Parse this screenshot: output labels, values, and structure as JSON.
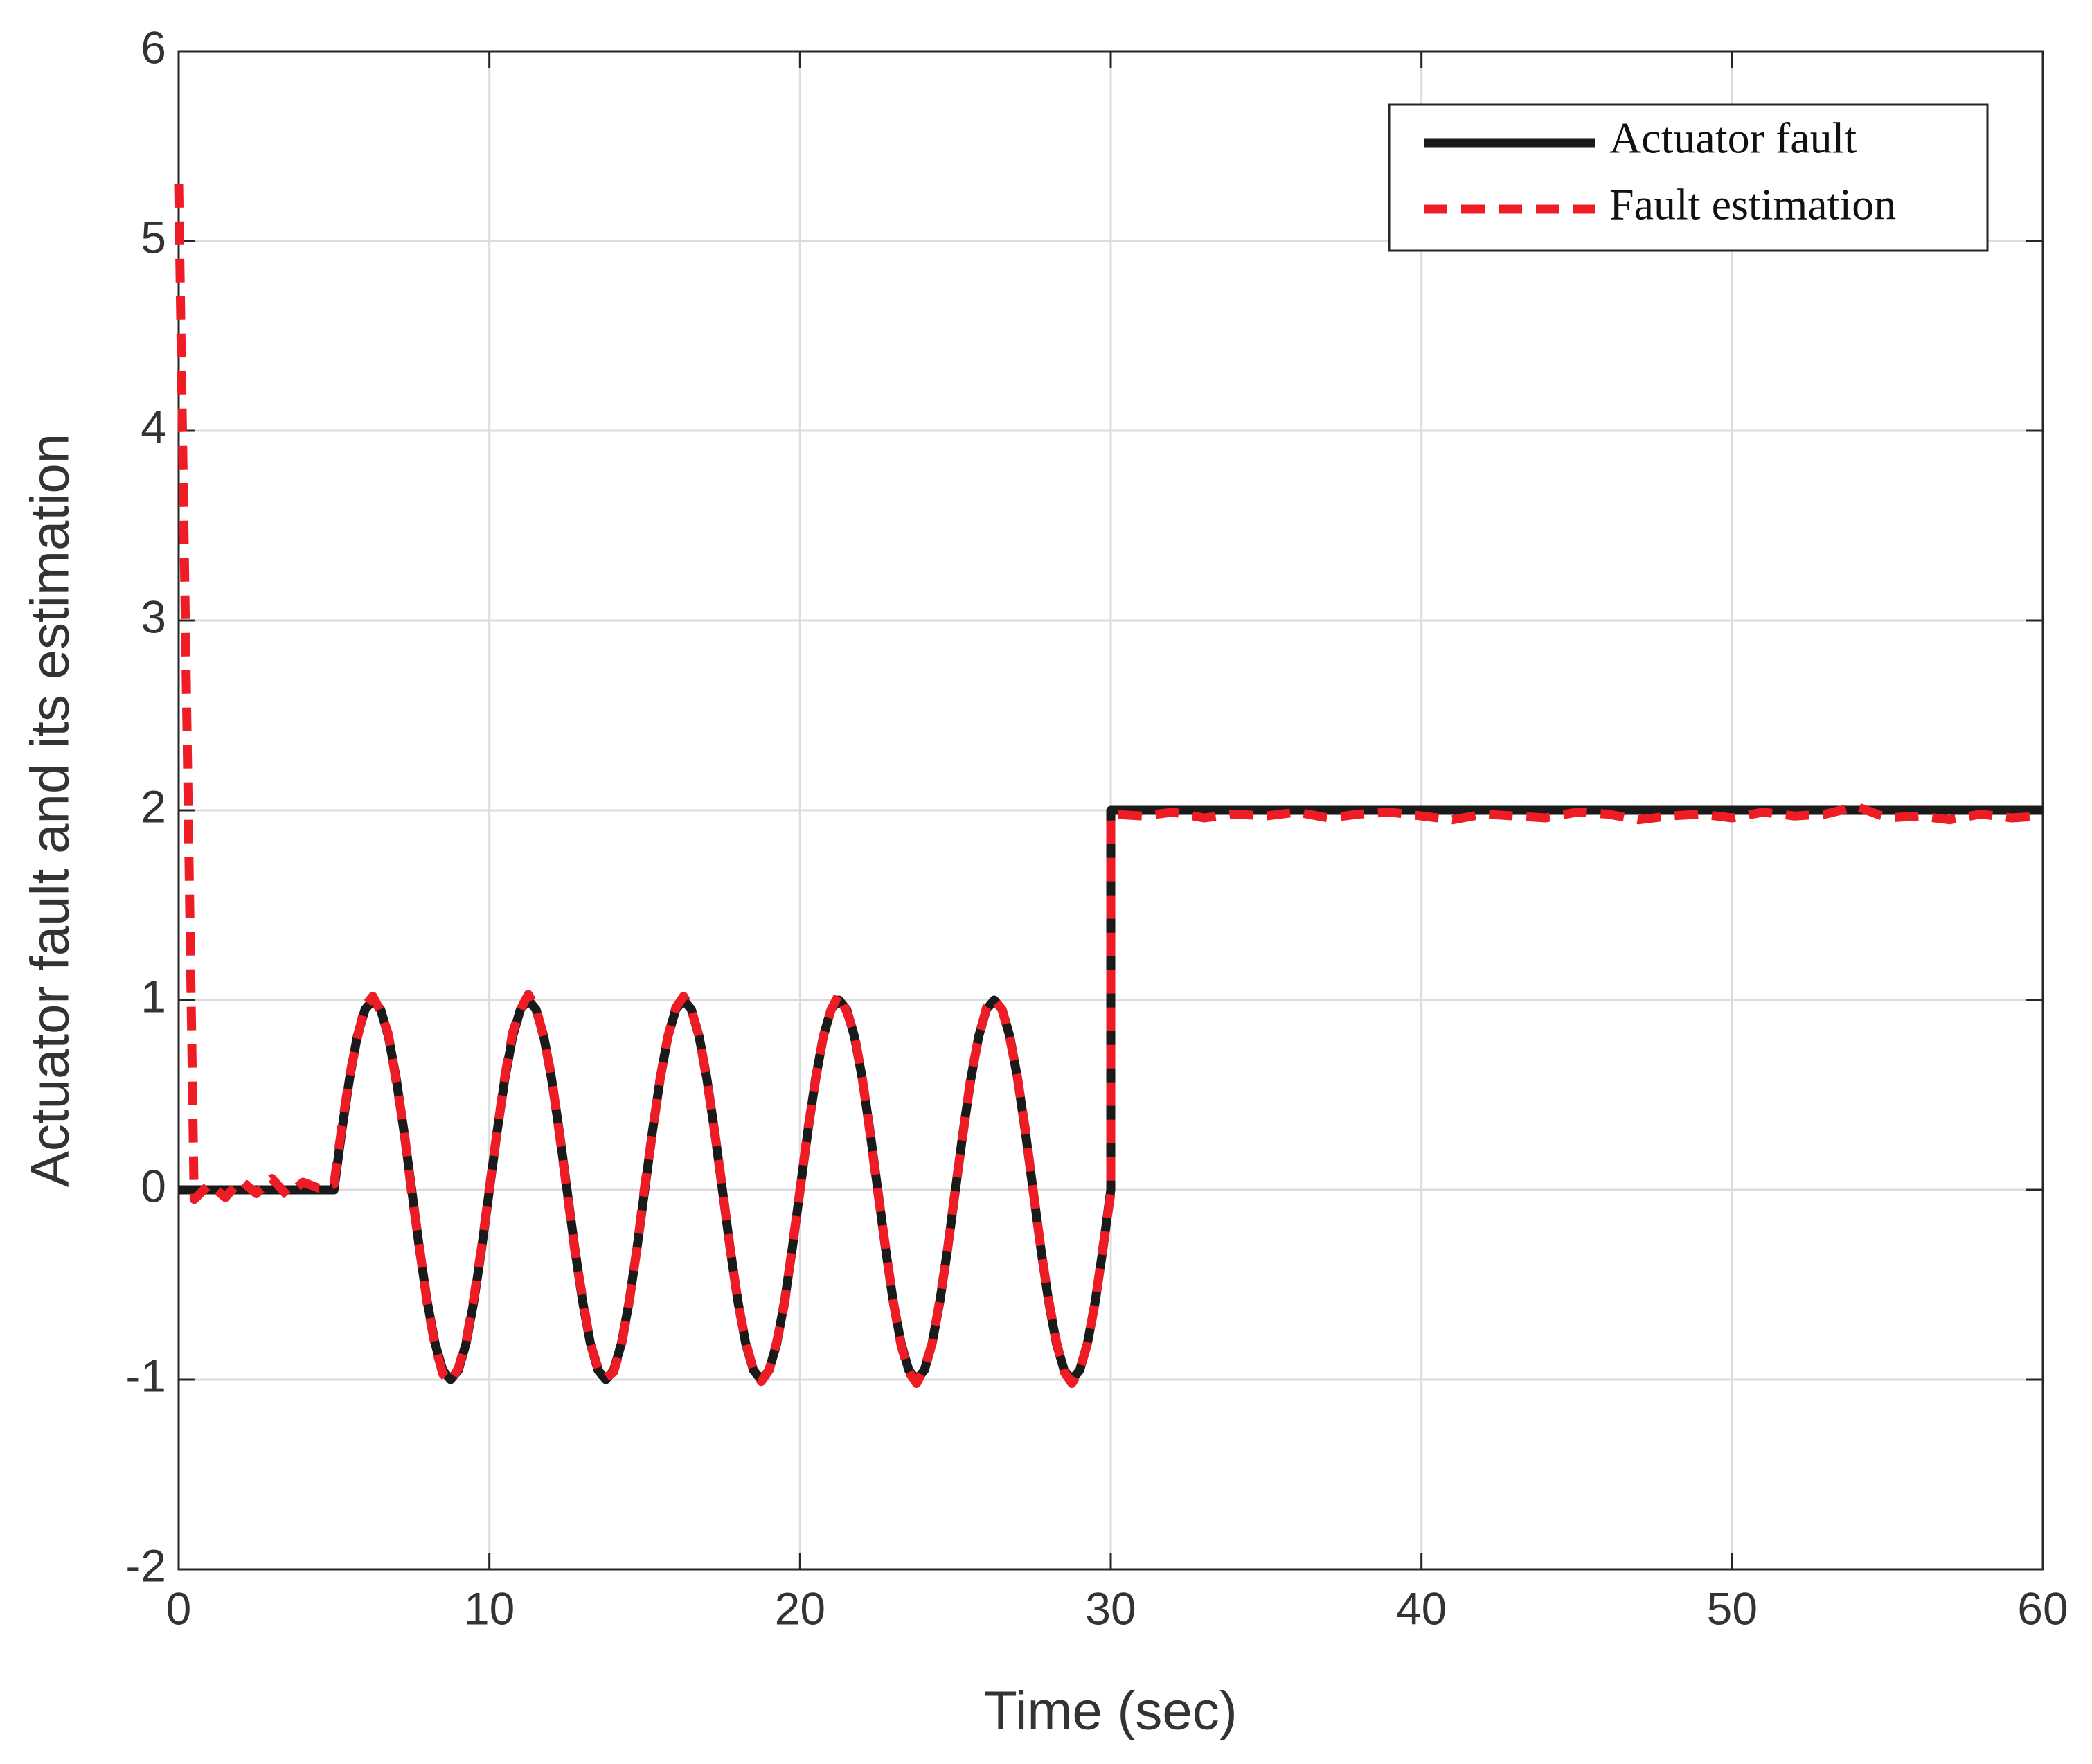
{
  "chart_data": {
    "type": "line",
    "xlabel": "Time (sec)",
    "ylabel": "Actuator fault and its estimation",
    "x": [
      0,
      0.5,
      1,
      1.5,
      2,
      2.5,
      3,
      3.5,
      4,
      4.5,
      5,
      5.25,
      5.5,
      5.75,
      6,
      6.25,
      6.5,
      6.75,
      7,
      7.25,
      7.5,
      7.75,
      8,
      8.25,
      8.5,
      8.75,
      9,
      9.25,
      9.5,
      9.75,
      10,
      10.25,
      10.5,
      10.75,
      11,
      11.25,
      11.5,
      11.75,
      12,
      12.25,
      12.5,
      12.75,
      13,
      13.25,
      13.5,
      13.75,
      14,
      14.25,
      14.5,
      14.75,
      15,
      15.25,
      15.5,
      15.75,
      16,
      16.25,
      16.5,
      16.75,
      17,
      17.25,
      17.5,
      17.75,
      18,
      18.25,
      18.5,
      18.75,
      19,
      19.25,
      19.5,
      19.75,
      20,
      20.25,
      20.5,
      20.75,
      21,
      21.25,
      21.5,
      21.75,
      22,
      22.25,
      22.5,
      22.75,
      23,
      23.25,
      23.5,
      23.75,
      24,
      24.25,
      24.5,
      24.75,
      25,
      25.25,
      25.5,
      25.75,
      26,
      26.25,
      26.5,
      26.75,
      27,
      27.25,
      27.5,
      27.75,
      28,
      28.25,
      28.5,
      28.75,
      29,
      29.25,
      29.5,
      29.75,
      30,
      30,
      31,
      32,
      33,
      34,
      35,
      36,
      37,
      38,
      39,
      40,
      41,
      42,
      43,
      44,
      45,
      46,
      47,
      48,
      49,
      50,
      51,
      52,
      53,
      54,
      55,
      56,
      57,
      58,
      59,
      60
    ],
    "series": [
      {
        "name": "Actuator fault",
        "color": "#1a1a1a",
        "dash": false,
        "values": [
          0,
          0,
          0,
          0,
          0,
          0,
          0,
          0,
          0,
          0,
          0,
          0.309,
          0.588,
          0.809,
          0.951,
          1,
          0.951,
          0.809,
          0.588,
          0.309,
          0,
          -0.309,
          -0.588,
          -0.809,
          -0.951,
          -1,
          -0.951,
          -0.809,
          -0.588,
          -0.309,
          0,
          0.309,
          0.588,
          0.809,
          0.951,
          1,
          0.951,
          0.809,
          0.588,
          0.309,
          0,
          -0.309,
          -0.588,
          -0.809,
          -0.951,
          -1,
          -0.951,
          -0.809,
          -0.588,
          -0.309,
          0,
          0.309,
          0.588,
          0.809,
          0.951,
          1,
          0.951,
          0.809,
          0.588,
          0.309,
          0,
          -0.309,
          -0.588,
          -0.809,
          -0.951,
          -1,
          -0.951,
          -0.809,
          -0.588,
          -0.309,
          0,
          0.309,
          0.588,
          0.809,
          0.951,
          1,
          0.951,
          0.809,
          0.588,
          0.309,
          0,
          -0.309,
          -0.588,
          -0.809,
          -0.951,
          -1,
          -0.951,
          -0.809,
          -0.588,
          -0.309,
          0,
          0.309,
          0.588,
          0.809,
          0.951,
          1,
          0.951,
          0.809,
          0.588,
          0.309,
          0,
          -0.309,
          -0.588,
          -0.809,
          -0.951,
          -1,
          -0.951,
          -0.809,
          -0.588,
          -0.309,
          0,
          2,
          2,
          2,
          2,
          2,
          2,
          2,
          2,
          2,
          2,
          2,
          2,
          2,
          2,
          2,
          2,
          2,
          2,
          2,
          2,
          2,
          2,
          2,
          2,
          2,
          2,
          2,
          2,
          2,
          2,
          2
        ]
      },
      {
        "name": "Fault estimation",
        "color": "#ee1c25",
        "dash": true,
        "values": [
          5.3,
          -0.05,
          0.03,
          -0.04,
          0.05,
          -0.02,
          0.06,
          -0.03,
          0.04,
          0.01,
          0.03,
          0.33,
          0.6,
          0.8,
          0.97,
          1.02,
          0.94,
          0.82,
          0.57,
          0.32,
          -0.02,
          -0.3,
          -0.6,
          -0.82,
          -0.97,
          -1.01,
          -0.94,
          -0.8,
          -0.57,
          -0.3,
          0.01,
          0.31,
          0.6,
          0.83,
          0.95,
          1.03,
          0.96,
          0.8,
          0.6,
          0.3,
          -0.01,
          -0.32,
          -0.57,
          -0.81,
          -0.94,
          -0.99,
          -0.96,
          -0.82,
          -0.59,
          -0.31,
          0.02,
          0.3,
          0.59,
          0.81,
          0.96,
          1.02,
          0.95,
          0.81,
          0.58,
          0.31,
          0.01,
          -0.31,
          -0.59,
          -0.8,
          -0.95,
          -1.01,
          -0.95,
          -0.8,
          -0.6,
          -0.3,
          0,
          0.32,
          0.58,
          0.81,
          0.95,
          1.03,
          0.94,
          0.82,
          0.59,
          0.3,
          -0.01,
          -0.3,
          -0.59,
          -0.82,
          -0.96,
          -1.02,
          -0.94,
          -0.81,
          -0.58,
          -0.31,
          0.01,
          0.3,
          0.6,
          0.8,
          0.96,
          1,
          0.95,
          0.8,
          0.59,
          0.32,
          0,
          -0.31,
          -0.58,
          -0.8,
          -0.96,
          -1.02,
          -0.95,
          -0.81,
          -0.59,
          -0.3,
          -0.02,
          1.98,
          1.97,
          1.99,
          1.96,
          1.98,
          1.97,
          1.99,
          1.96,
          1.98,
          1.99,
          1.97,
          1.95,
          1.98,
          1.97,
          1.96,
          1.99,
          1.98,
          1.95,
          1.97,
          1.98,
          1.96,
          1.99,
          1.97,
          1.98,
          2.02,
          1.96,
          1.97,
          1.95,
          1.98,
          1.96,
          1.97
        ]
      }
    ],
    "xlim": [
      0,
      60
    ],
    "xticks": [
      0,
      10,
      20,
      30,
      40,
      50,
      60
    ],
    "ylim": [
      -2,
      6
    ],
    "yticks": [
      -2,
      -1,
      0,
      1,
      2,
      3,
      4,
      5,
      6
    ],
    "grid": true,
    "legend": "upper right"
  }
}
